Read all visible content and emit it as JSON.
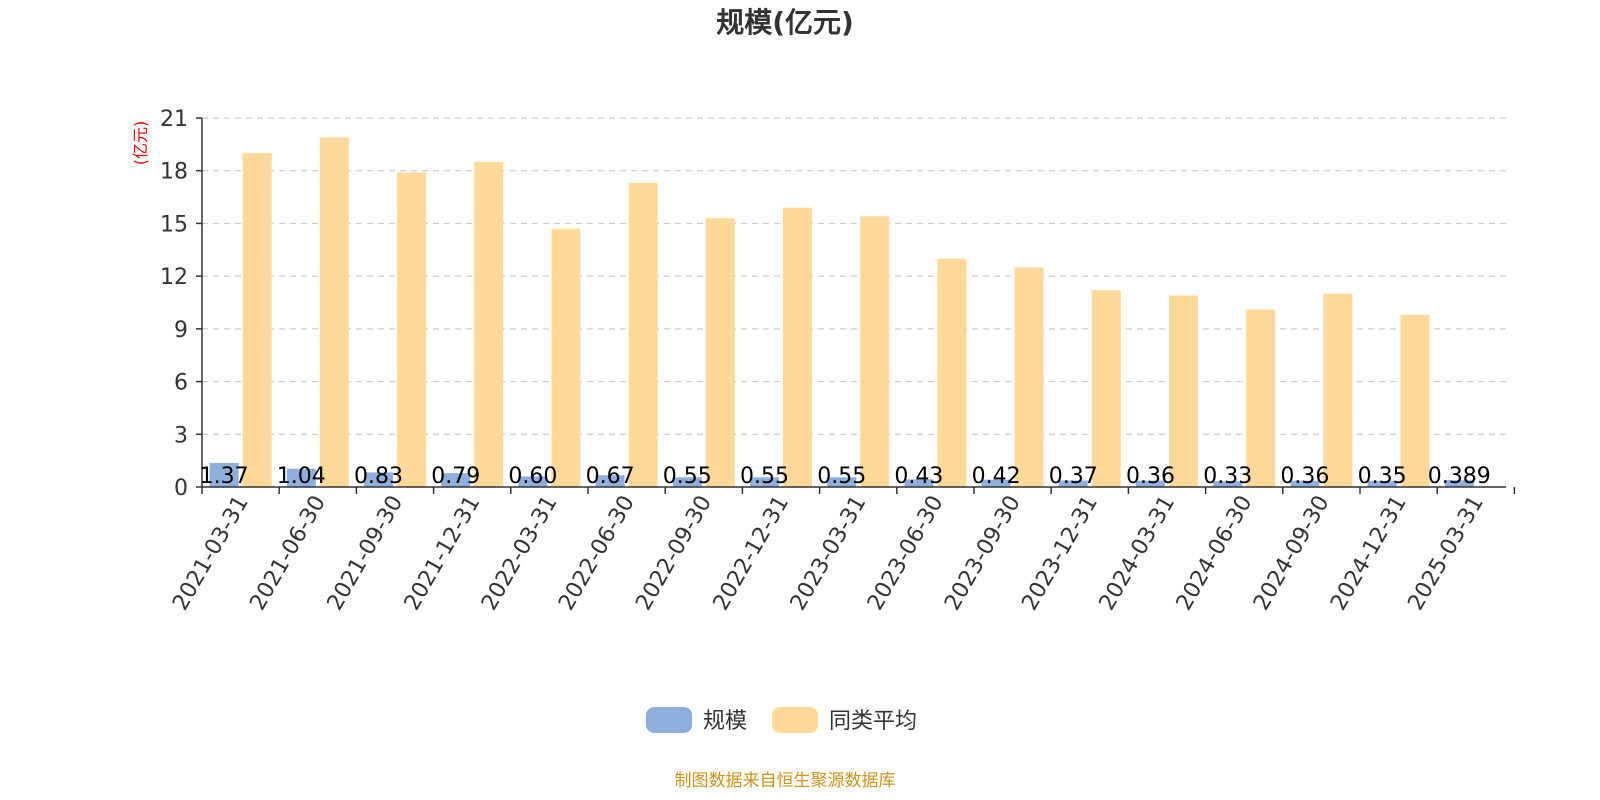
{
  "chart_data": {
    "type": "bar",
    "title": "规模(亿元)",
    "unit_label": "(亿元)",
    "categories": [
      "2021-03-31",
      "2021-06-30",
      "2021-09-30",
      "2021-12-31",
      "2022-03-31",
      "2022-06-30",
      "2022-09-30",
      "2022-12-31",
      "2023-03-31",
      "2023-06-30",
      "2023-09-30",
      "2023-12-31",
      "2024-03-31",
      "2024-06-30",
      "2024-09-30",
      "2024-12-31",
      "2025-03-31"
    ],
    "series": [
      {
        "name": "规模",
        "color": "#8eaedc",
        "values": [
          1.37,
          1.04,
          0.83,
          0.79,
          0.6,
          0.67,
          0.55,
          0.55,
          0.55,
          0.43,
          0.42,
          0.37,
          0.36,
          0.33,
          0.36,
          0.35,
          0.389
        ],
        "labels": [
          "1.37",
          "1.04",
          "0.83",
          "0.79",
          "0.60",
          "0.67",
          "0.55",
          "0.55",
          "0.55",
          "0.43",
          "0.42",
          "0.37",
          "0.36",
          "0.33",
          "0.36",
          "0.35",
          "0.389"
        ]
      },
      {
        "name": "同类平均",
        "color": "#ffd99a",
        "values": [
          19.0,
          19.9,
          17.9,
          18.5,
          14.7,
          17.3,
          15.3,
          15.9,
          15.4,
          13.0,
          12.5,
          11.2,
          10.9,
          10.1,
          11.0,
          9.8,
          null
        ]
      }
    ],
    "yticks": [
      "0",
      "3",
      "6",
      "9",
      "12",
      "15",
      "18",
      "21"
    ],
    "ylim": [
      0,
      21
    ],
    "grid": true,
    "legend_position": "bottom-center",
    "source_note": "制图数据来自恒生聚源数据库"
  }
}
